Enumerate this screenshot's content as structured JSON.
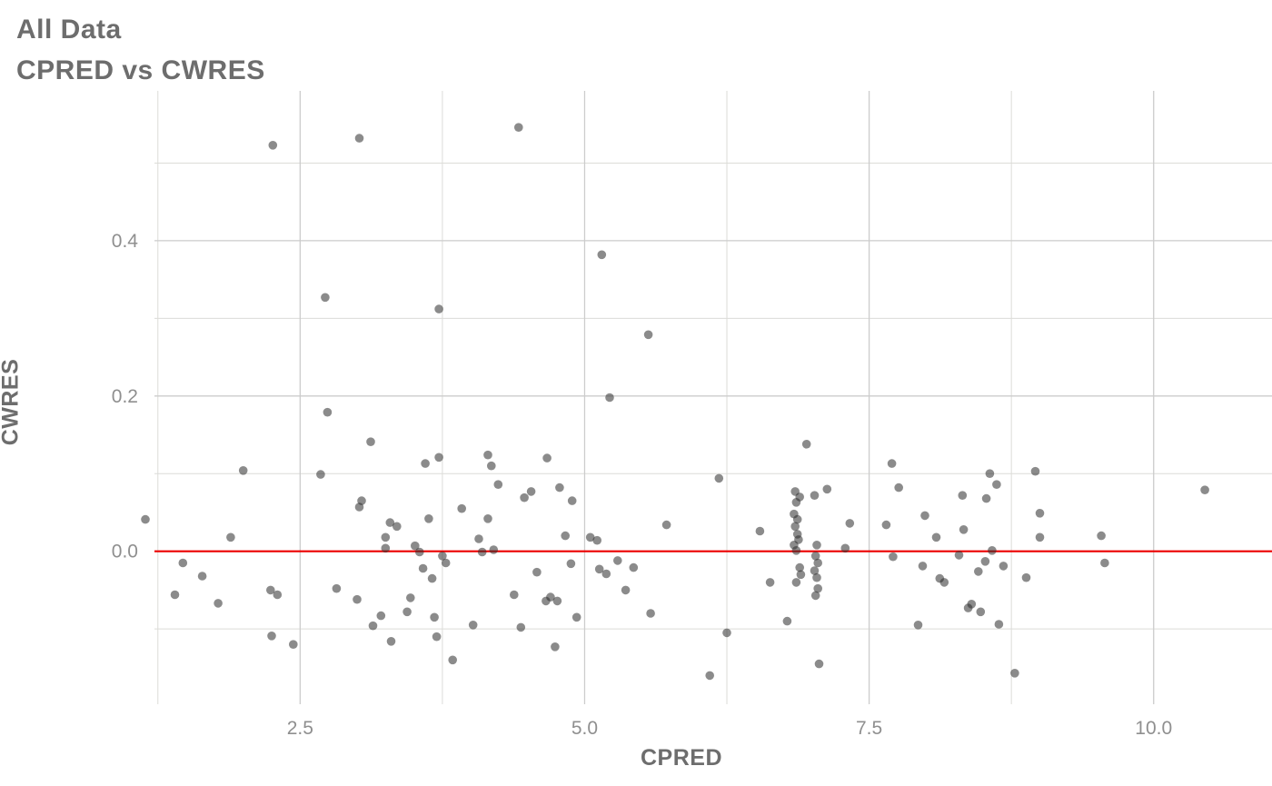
{
  "page": {
    "title": "All Data",
    "subtitle": "CPRED vs CWRES"
  },
  "colors": {
    "title_text": "#6d6d6d",
    "tick_text": "#8f8f8f",
    "grid_major": "#cccccc",
    "grid_minor": "#dcdcd8",
    "point": "#2b2b2b",
    "reference_line": "#ec0000",
    "background": "#ffffff"
  },
  "chart_data": {
    "type": "scatter",
    "title": "All Data",
    "subtitle": "CPRED vs CWRES",
    "xlabel": "CPRED",
    "ylabel": "CWRES",
    "xlim": [
      1.22,
      11.04
    ],
    "ylim": [
      -0.197,
      0.593
    ],
    "grid": true,
    "legend": "none",
    "point_color": "#2b2b2b",
    "point_opacity": 0.55,
    "x_ticks": {
      "major": [
        2.5,
        5.0,
        7.5,
        10.0
      ],
      "labels": [
        "2.5",
        "5.0",
        "7.5",
        "10.0"
      ],
      "minor": [
        1.25,
        3.75,
        6.25,
        8.75
      ]
    },
    "y_ticks": {
      "major": [
        0.0,
        0.2,
        0.4
      ],
      "labels": [
        "0.0",
        "0.2",
        "0.4"
      ],
      "minor": [
        -0.1,
        0.1,
        0.3,
        0.5
      ]
    },
    "reference_line": {
      "y": 0.0,
      "color": "#ec0000"
    },
    "points": [
      [
        2.26,
        0.523
      ],
      [
        3.02,
        0.532
      ],
      [
        4.42,
        0.546
      ],
      [
        5.15,
        0.382
      ],
      [
        2.72,
        0.327
      ],
      [
        3.72,
        0.312
      ],
      [
        5.56,
        0.279
      ],
      [
        5.22,
        0.198
      ],
      [
        2.74,
        0.179
      ],
      [
        3.12,
        0.141
      ],
      [
        6.95,
        0.138
      ],
      [
        2.0,
        0.104
      ],
      [
        2.68,
        0.099
      ],
      [
        4.15,
        0.124
      ],
      [
        3.72,
        0.121
      ],
      [
        3.6,
        0.113
      ],
      [
        4.18,
        0.11
      ],
      [
        4.67,
        0.12
      ],
      [
        4.24,
        0.086
      ],
      [
        4.47,
        0.069
      ],
      [
        4.53,
        0.077
      ],
      [
        4.78,
        0.082
      ],
      [
        4.89,
        0.065
      ],
      [
        6.18,
        0.094
      ],
      [
        7.7,
        0.113
      ],
      [
        7.76,
        0.082
      ],
      [
        8.56,
        0.1
      ],
      [
        8.53,
        0.068
      ],
      [
        8.62,
        0.086
      ],
      [
        8.96,
        0.103
      ],
      [
        9.0,
        0.049
      ],
      [
        10.45,
        0.079
      ],
      [
        8.32,
        0.072
      ],
      [
        7.99,
        0.046
      ],
      [
        6.85,
        0.077
      ],
      [
        6.89,
        0.07
      ],
      [
        6.86,
        0.063
      ],
      [
        7.02,
        0.072
      ],
      [
        7.13,
        0.08
      ],
      [
        6.84,
        0.048
      ],
      [
        6.87,
        0.041
      ],
      [
        6.85,
        0.032
      ],
      [
        6.87,
        0.022
      ],
      [
        6.88,
        0.015
      ],
      [
        6.84,
        0.008
      ],
      [
        6.86,
        0.001
      ],
      [
        7.04,
        0.008
      ],
      [
        7.03,
        -0.006
      ],
      [
        7.05,
        -0.015
      ],
      [
        7.02,
        -0.025
      ],
      [
        7.04,
        -0.034
      ],
      [
        6.89,
        -0.021
      ],
      [
        6.9,
        -0.03
      ],
      [
        6.86,
        -0.04
      ],
      [
        7.05,
        -0.048
      ],
      [
        7.03,
        -0.057
      ],
      [
        7.29,
        0.004
      ],
      [
        7.33,
        0.036
      ],
      [
        1.14,
        0.041
      ],
      [
        1.4,
        -0.056
      ],
      [
        1.47,
        -0.015
      ],
      [
        1.64,
        -0.032
      ],
      [
        1.78,
        -0.067
      ],
      [
        1.89,
        0.018
      ],
      [
        2.24,
        -0.05
      ],
      [
        2.3,
        -0.056
      ],
      [
        2.25,
        -0.109
      ],
      [
        2.44,
        -0.12
      ],
      [
        2.82,
        -0.048
      ],
      [
        3.0,
        -0.062
      ],
      [
        3.04,
        0.065
      ],
      [
        3.02,
        0.057
      ],
      [
        3.14,
        -0.096
      ],
      [
        3.21,
        -0.083
      ],
      [
        3.25,
        0.004
      ],
      [
        3.25,
        0.018
      ],
      [
        3.29,
        0.037
      ],
      [
        3.35,
        0.032
      ],
      [
        3.3,
        -0.116
      ],
      [
        3.44,
        -0.078
      ],
      [
        3.47,
        -0.06
      ],
      [
        3.51,
        0.007
      ],
      [
        3.55,
        -0.001
      ],
      [
        3.58,
        -0.022
      ],
      [
        3.63,
        0.042
      ],
      [
        3.66,
        -0.035
      ],
      [
        3.68,
        -0.085
      ],
      [
        3.7,
        -0.11
      ],
      [
        3.75,
        -0.006
      ],
      [
        3.78,
        -0.015
      ],
      [
        3.84,
        -0.14
      ],
      [
        3.92,
        0.055
      ],
      [
        4.02,
        -0.095
      ],
      [
        4.07,
        0.016
      ],
      [
        4.1,
        -0.001
      ],
      [
        4.15,
        0.042
      ],
      [
        4.2,
        0.002
      ],
      [
        4.38,
        -0.056
      ],
      [
        4.44,
        -0.098
      ],
      [
        4.58,
        -0.027
      ],
      [
        4.66,
        -0.064
      ],
      [
        4.7,
        -0.059
      ],
      [
        4.74,
        -0.123
      ],
      [
        4.76,
        -0.064
      ],
      [
        4.83,
        0.02
      ],
      [
        4.88,
        -0.016
      ],
      [
        4.93,
        -0.085
      ],
      [
        5.05,
        0.018
      ],
      [
        5.11,
        0.014
      ],
      [
        5.13,
        -0.023
      ],
      [
        5.19,
        -0.029
      ],
      [
        5.29,
        -0.012
      ],
      [
        5.36,
        -0.05
      ],
      [
        5.43,
        -0.021
      ],
      [
        5.58,
        -0.08
      ],
      [
        5.72,
        0.034
      ],
      [
        6.1,
        -0.16
      ],
      [
        6.25,
        -0.105
      ],
      [
        6.54,
        0.026
      ],
      [
        6.63,
        -0.04
      ],
      [
        6.78,
        -0.09
      ],
      [
        7.06,
        -0.145
      ],
      [
        7.65,
        0.034
      ],
      [
        7.71,
        -0.007
      ],
      [
        7.93,
        -0.095
      ],
      [
        7.97,
        -0.019
      ],
      [
        8.09,
        0.018
      ],
      [
        8.12,
        -0.035
      ],
      [
        8.16,
        -0.04
      ],
      [
        8.29,
        -0.005
      ],
      [
        8.33,
        0.028
      ],
      [
        8.37,
        -0.073
      ],
      [
        8.4,
        -0.068
      ],
      [
        8.46,
        -0.026
      ],
      [
        8.48,
        -0.078
      ],
      [
        8.52,
        -0.013
      ],
      [
        8.58,
        0.001
      ],
      [
        8.64,
        -0.094
      ],
      [
        8.68,
        -0.019
      ],
      [
        8.78,
        -0.157
      ],
      [
        8.88,
        -0.034
      ],
      [
        9.0,
        0.018
      ],
      [
        9.54,
        0.02
      ],
      [
        9.57,
        -0.015
      ]
    ]
  }
}
